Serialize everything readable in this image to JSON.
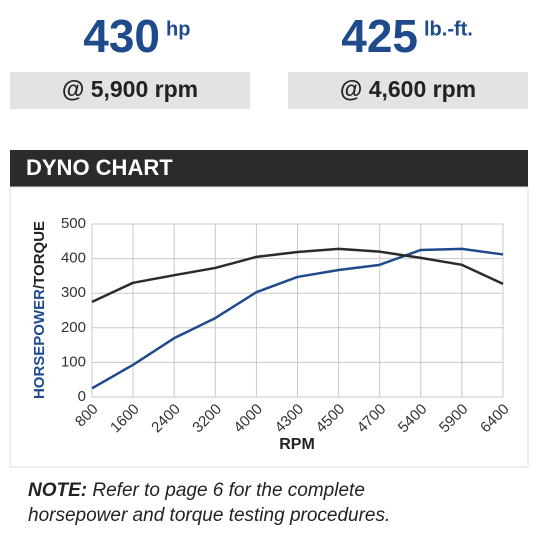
{
  "stats": [
    {
      "value": "430",
      "unit": "hp",
      "at": "@ 5,900 rpm"
    },
    {
      "value": "425",
      "unit": "lb.-ft.",
      "at": "@ 4,600 rpm"
    }
  ],
  "section_title": "DYNO CHART",
  "chart_data": {
    "type": "line",
    "x_label": "RPM",
    "y_label_parts": [
      "HORSEPOWER",
      "/TORQUE"
    ],
    "categories": [
      "800",
      "1600",
      "2400",
      "3200",
      "4000",
      "4300",
      "4500",
      "4700",
      "5400",
      "5900",
      "6400"
    ],
    "ylim": [
      0,
      500
    ],
    "yticks": [
      0,
      100,
      200,
      300,
      400,
      500
    ],
    "grid": true,
    "series": [
      {
        "color": "#1f4a8c",
        "values": [
          25,
          93,
          170,
          228,
          303,
          347,
          367,
          382,
          425,
          428,
          412
        ]
      },
      {
        "color": "#2b2b2b",
        "values": [
          275,
          330,
          352,
          373,
          405,
          419,
          428,
          420,
          402,
          382,
          327
        ]
      }
    ]
  },
  "note": {
    "label": "NOTE:",
    "text": "Refer to page 6 for the complete horsepower and torque testing procedures."
  }
}
